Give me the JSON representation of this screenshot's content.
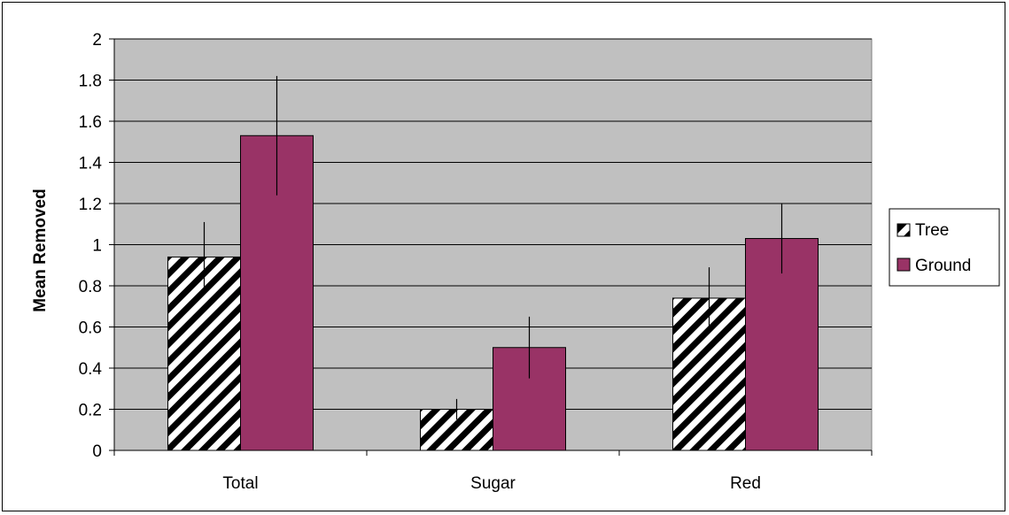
{
  "chart_data": {
    "type": "bar",
    "categories": [
      "Total",
      "Sugar",
      "Red"
    ],
    "series": [
      {
        "name": "Tree",
        "values": [
          0.94,
          0.2,
          0.74
        ],
        "error": [
          0.17,
          0.05,
          0.15
        ],
        "color": "#ffffff",
        "pattern": "diagonal-stripes"
      },
      {
        "name": "Ground",
        "values": [
          1.53,
          0.5,
          1.03
        ],
        "error": [
          0.29,
          0.15,
          0.17
        ],
        "color": "#993366"
      }
    ],
    "ylabel": "Mean Removed",
    "xlabel": "",
    "ylim": [
      0,
      2
    ],
    "yticks": [
      "0",
      "0.2",
      "0.4",
      "0.6",
      "0.8",
      "1",
      "1.2",
      "1.4",
      "1.6",
      "1.8",
      "2"
    ],
    "plot_background": "#c0c0c0",
    "grid": true,
    "legend_position": "right"
  }
}
